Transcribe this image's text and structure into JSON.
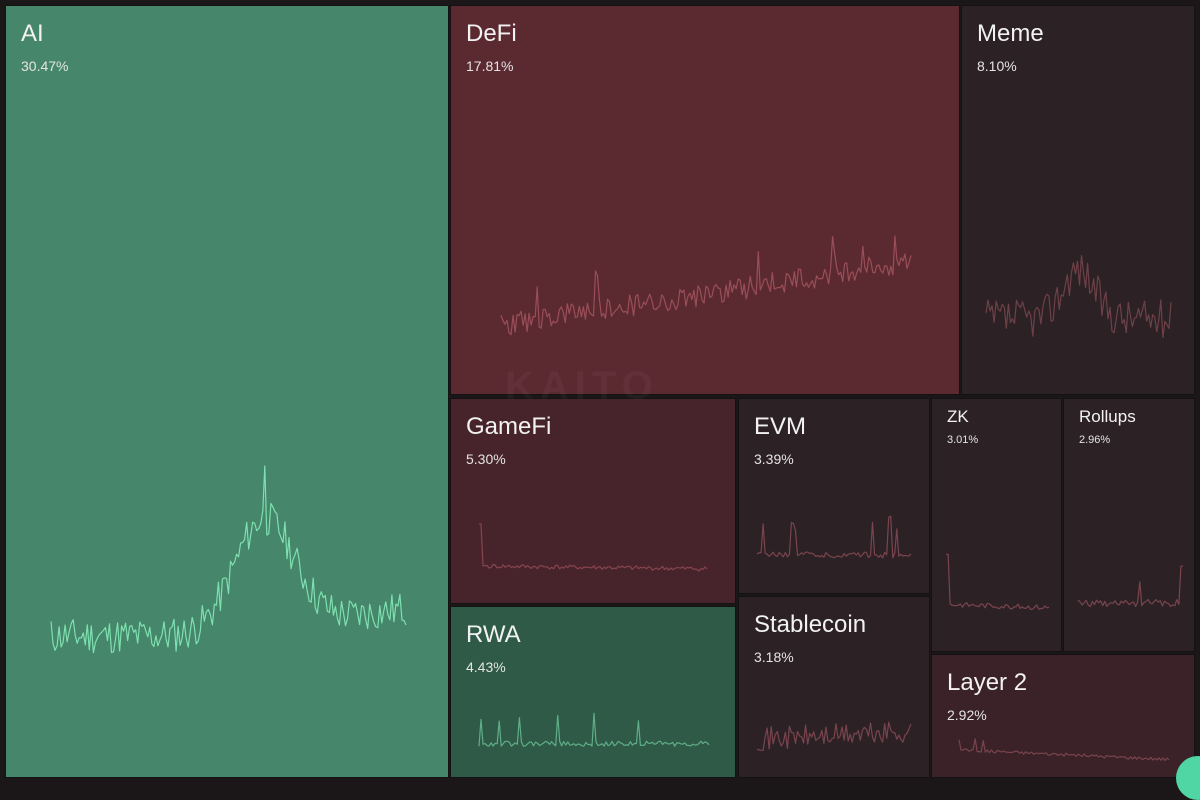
{
  "chart_data": {
    "type": "treemap",
    "title": "",
    "sectors": [
      {
        "name": "AI",
        "percent_label": "30.47%",
        "percent": 30.47,
        "trend": "up",
        "fill": "#46866a",
        "line": "#7ee0b0",
        "seed": 11
      },
      {
        "name": "DeFi",
        "percent_label": "17.81%",
        "percent": 17.81,
        "trend": "down",
        "fill": "#5b2a31",
        "line": "#9a4e58",
        "seed": 23
      },
      {
        "name": "Meme",
        "percent_label": "8.10%",
        "percent": 8.1,
        "trend": "down",
        "fill": "#2c2226",
        "line": "#6e4048",
        "seed": 37
      },
      {
        "name": "GameFi",
        "percent_label": "5.30%",
        "percent": 5.3,
        "trend": "down",
        "fill": "#47242b",
        "line": "#87444e",
        "seed": 41
      },
      {
        "name": "RWA",
        "percent_label": "4.43%",
        "percent": 4.43,
        "trend": "up",
        "fill": "#2f5a47",
        "line": "#5fae88",
        "seed": 53
      },
      {
        "name": "EVM",
        "percent_label": "3.39%",
        "percent": 3.39,
        "trend": "down",
        "fill": "#2c2226",
        "line": "#7a444e",
        "seed": 61
      },
      {
        "name": "Stablecoin",
        "percent_label": "3.18%",
        "percent": 3.18,
        "trend": "down",
        "fill": "#2c2226",
        "line": "#7a444e",
        "seed": 71
      },
      {
        "name": "ZK",
        "percent_label": "3.01%",
        "percent": 3.01,
        "trend": "down",
        "fill": "#2c2226",
        "line": "#7a444e",
        "seed": 83
      },
      {
        "name": "Rollups",
        "percent_label": "2.96%",
        "percent": 2.96,
        "trend": "down",
        "fill": "#2c2226",
        "line": "#7a444e",
        "seed": 97
      },
      {
        "name": "Layer 2",
        "percent_label": "2.92%",
        "percent": 2.92,
        "trend": "down",
        "fill": "#3a2228",
        "line": "#7a444e",
        "seed": 101
      }
    ]
  }
}
